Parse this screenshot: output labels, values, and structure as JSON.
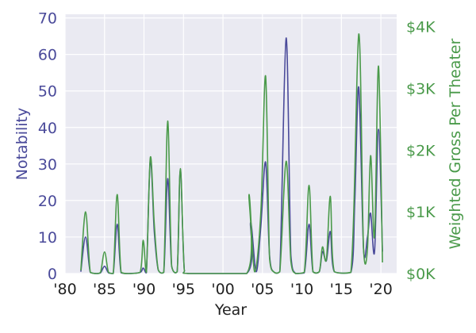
{
  "chart_data": {
    "type": "line",
    "xlabel": "Year",
    "ylabel_left": "Notability",
    "ylabel_right": "Weighted Gross Per Theater",
    "xlim": [
      1980,
      2022
    ],
    "ylim_left": [
      0,
      71
    ],
    "ylim_right": [
      0,
      4200
    ],
    "x_ticks": [
      1980,
      1985,
      1990,
      1995,
      2000,
      2005,
      2010,
      2015,
      2020
    ],
    "x_tick_labels": [
      "'80",
      "'85",
      "'90",
      "'95",
      "'00",
      "'05",
      "'10",
      "'15",
      "'20"
    ],
    "y_ticks_left": [
      0,
      10,
      20,
      30,
      40,
      50,
      60,
      70
    ],
    "y_tick_labels_left": [
      "0",
      "10",
      "20",
      "30",
      "40",
      "50",
      "60",
      "70"
    ],
    "y_ticks_right": [
      0,
      1000,
      2000,
      3000,
      4000
    ],
    "y_tick_labels_right": [
      "$0K",
      "$1K",
      "$2K",
      "$3K",
      "$4K"
    ],
    "grid": true,
    "colors": {
      "notability": "#4a4a9a",
      "gross": "#4a9a4a",
      "background": "#eaeaf2",
      "grid": "#ffffff"
    },
    "series": [
      {
        "axis": "left",
        "points": [
          [
            1982,
            0.5
          ],
          [
            1982.6,
            10
          ],
          [
            1983.2,
            0.3
          ],
          [
            1984,
            0
          ],
          [
            1984.5,
            0.2
          ],
          [
            1985,
            2
          ],
          [
            1985.5,
            0.2
          ],
          [
            1986.1,
            0
          ],
          [
            1986.6,
            13.5
          ],
          [
            1987.1,
            0.2
          ],
          [
            1988,
            0
          ],
          [
            1989.5,
            0.3
          ],
          [
            1989.9,
            1.5
          ],
          [
            1990.3,
            0.2
          ],
          [
            1990.8,
            31
          ],
          [
            1991.3,
            11.5
          ],
          [
            1991.8,
            1
          ],
          [
            1992.5,
            0.3
          ],
          [
            1993,
            26
          ],
          [
            1993.5,
            2
          ],
          [
            1994.2,
            0.5
          ],
          [
            1994.6,
            28.5
          ],
          [
            1995.1,
            1
          ],
          [
            1995.7,
            0
          ],
          [
            2003,
            0
          ],
          [
            2003.5,
            14
          ],
          [
            2004.2,
            0.5
          ],
          [
            2004.8,
            13
          ],
          [
            2005.4,
            30.5
          ],
          [
            2005.9,
            5
          ],
          [
            2006.5,
            0.3
          ],
          [
            2007.2,
            0.5
          ],
          [
            2008,
            64.5
          ],
          [
            2008.6,
            5
          ],
          [
            2009.2,
            0
          ],
          [
            2010.3,
            0.2
          ],
          [
            2010.9,
            13.5
          ],
          [
            2011.4,
            0.5
          ],
          [
            2012.2,
            0.5
          ],
          [
            2012.6,
            6
          ],
          [
            2013.1,
            3.5
          ],
          [
            2013.6,
            11.5
          ],
          [
            2014.1,
            0.5
          ],
          [
            2016.2,
            0.3
          ],
          [
            2016.7,
            20
          ],
          [
            2017.2,
            51
          ],
          [
            2017.8,
            7
          ],
          [
            2018.3,
            10
          ],
          [
            2018.7,
            16.5
          ],
          [
            2019.2,
            6
          ],
          [
            2019.7,
            39.5
          ],
          [
            2020.2,
            6
          ]
        ]
      },
      {
        "axis": "right",
        "points": [
          [
            1982,
            50
          ],
          [
            1982.6,
            1000
          ],
          [
            1983.2,
            20
          ],
          [
            1984,
            0
          ],
          [
            1984.5,
            20
          ],
          [
            1985,
            350
          ],
          [
            1985.5,
            20
          ],
          [
            1986.1,
            0
          ],
          [
            1986.6,
            1280
          ],
          [
            1987.1,
            20
          ],
          [
            1988,
            0
          ],
          [
            1989.5,
            20
          ],
          [
            1989.9,
            540
          ],
          [
            1990.3,
            20
          ],
          [
            1990.8,
            1880
          ],
          [
            1991.3,
            800
          ],
          [
            1991.8,
            60
          ],
          [
            1992.5,
            20
          ],
          [
            1993,
            2470
          ],
          [
            1993.5,
            120
          ],
          [
            1994.2,
            30
          ],
          [
            1994.6,
            1700
          ],
          [
            1995.1,
            60
          ],
          [
            1995.7,
            0
          ],
          [
            2003,
            0
          ],
          [
            2003.3,
            1280
          ],
          [
            2004,
            30
          ],
          [
            2004.8,
            1000
          ],
          [
            2005.4,
            3200
          ],
          [
            2005.9,
            250
          ],
          [
            2006.5,
            20
          ],
          [
            2007.2,
            30
          ],
          [
            2008,
            1820
          ],
          [
            2008.6,
            200
          ],
          [
            2009.2,
            0
          ],
          [
            2010.3,
            20
          ],
          [
            2010.9,
            1430
          ],
          [
            2011.4,
            30
          ],
          [
            2012.2,
            30
          ],
          [
            2012.6,
            430
          ],
          [
            2013.1,
            230
          ],
          [
            2013.6,
            1250
          ],
          [
            2014.1,
            30
          ],
          [
            2016.2,
            20
          ],
          [
            2017.2,
            3880
          ],
          [
            2017.8,
            400
          ],
          [
            2018.3,
            400
          ],
          [
            2018.7,
            1910
          ],
          [
            2019.2,
            600
          ],
          [
            2019.7,
            3360
          ],
          [
            2020.2,
            180
          ]
        ]
      }
    ]
  }
}
